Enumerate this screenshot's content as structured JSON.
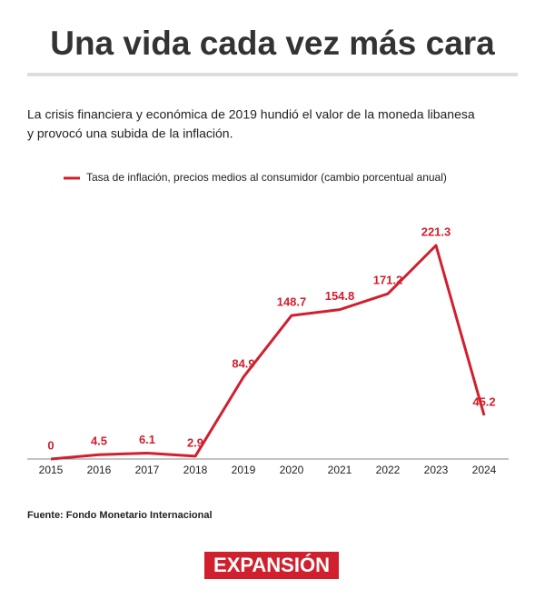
{
  "title": "Una vida cada vez más cara",
  "subtitle": [
    "La crisis financiera y económica de 2019 hundió el valor de la moneda libanesa",
    "y provocó una subida de la inflación."
  ],
  "chart_data": {
    "type": "line",
    "categories": [
      "2015",
      "2016",
      "2017",
      "2018",
      "2019",
      "2020",
      "2021",
      "2022",
      "2023",
      "2024"
    ],
    "series": [
      {
        "name": "Tasa de inflación, precios medios al consumidor (cambio porcentual anual)",
        "color": "#d0202e",
        "values": [
          0,
          4.5,
          6.1,
          2.9,
          84.9,
          148.7,
          154.8,
          171.2,
          221.3,
          45.2
        ]
      }
    ]
  },
  "source": "Fuente: Fondo Monetario Internacional",
  "logo": "EXPANSIÓN"
}
